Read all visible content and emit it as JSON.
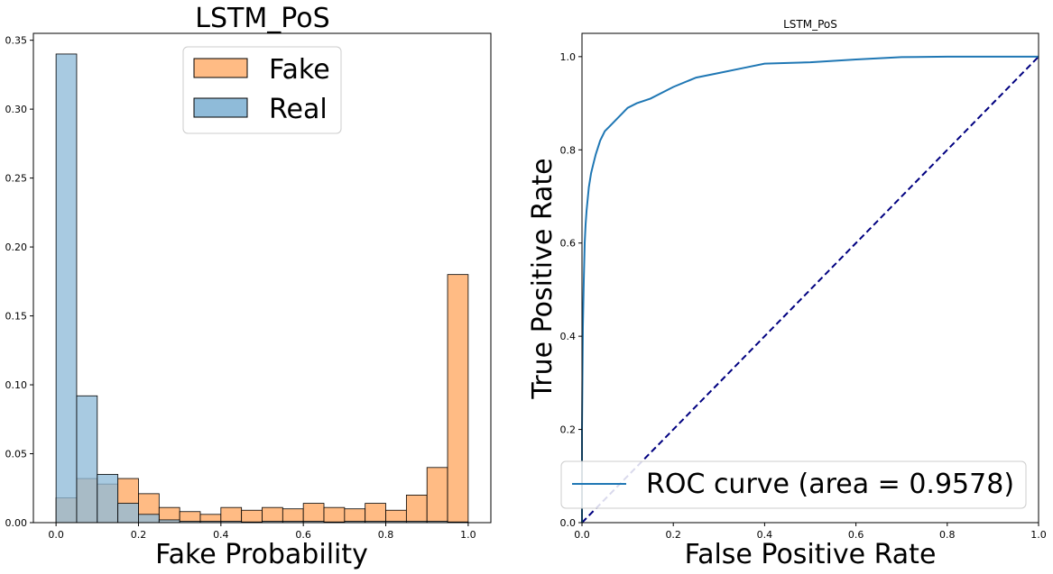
{
  "chart_data": [
    {
      "type": "histogram",
      "title": "LSTM_PoS",
      "xlabel": "Fake Probability",
      "ylabel": "",
      "xlim": [
        -0.055,
        1.055
      ],
      "ylim": [
        0,
        0.355
      ],
      "xticks": [
        "0.0",
        "0.2",
        "0.4",
        "0.6",
        "0.8",
        "1.0"
      ],
      "yticks": [
        "0.00",
        "0.05",
        "0.10",
        "0.15",
        "0.20",
        "0.25",
        "0.30",
        "0.35"
      ],
      "bins": [
        0.0,
        0.05,
        0.1,
        0.15,
        0.2,
        0.25,
        0.3,
        0.35,
        0.4,
        0.45,
        0.5,
        0.55,
        0.6,
        0.65,
        0.7,
        0.75,
        0.8,
        0.85,
        0.9,
        0.95,
        1.0
      ],
      "legend_position": "upper center",
      "series": [
        {
          "name": "Fake",
          "color": "#ffbb84",
          "values": [
            0.018,
            0.032,
            0.028,
            0.032,
            0.021,
            0.011,
            0.008,
            0.006,
            0.011,
            0.009,
            0.011,
            0.01,
            0.014,
            0.011,
            0.01,
            0.014,
            0.009,
            0.02,
            0.04,
            0.18
          ]
        },
        {
          "name": "Real",
          "color": "#8fbbd9",
          "values": [
            0.34,
            0.092,
            0.035,
            0.014,
            0.006,
            0.002,
            0.001,
            0.001,
            0.001,
            0.0005,
            0.001,
            0.001,
            0.001,
            0.0005,
            0.001,
            0.001,
            0.001,
            0.001,
            0.001,
            0.0005
          ]
        }
      ]
    },
    {
      "type": "line",
      "title": "LSTM_PoS",
      "xlabel": "False Positive Rate",
      "ylabel": "True Positive Rate",
      "xlim": [
        0,
        1
      ],
      "ylim": [
        0,
        1.05
      ],
      "xticks": [
        "0.0",
        "0.2",
        "0.4",
        "0.6",
        "0.8",
        "1.0"
      ],
      "yticks": [
        "0.0",
        "0.2",
        "0.4",
        "0.6",
        "0.8",
        "1.0"
      ],
      "legend_position": "lower right",
      "series": [
        {
          "name": "ROC curve (area = 0.9578)",
          "color": "#1f77b4",
          "style": "solid",
          "x": [
            0,
            0,
            0.002,
            0.004,
            0.006,
            0.008,
            0.01,
            0.015,
            0.02,
            0.025,
            0.03,
            0.04,
            0.05,
            0.06,
            0.08,
            0.1,
            0.12,
            0.15,
            0.2,
            0.25,
            0.3,
            0.35,
            0.4,
            0.5,
            0.6,
            0.7,
            0.8,
            0.9,
            1.0
          ],
          "y": [
            0,
            0.2,
            0.42,
            0.52,
            0.6,
            0.64,
            0.67,
            0.72,
            0.75,
            0.77,
            0.79,
            0.82,
            0.84,
            0.85,
            0.87,
            0.89,
            0.9,
            0.91,
            0.935,
            0.955,
            0.965,
            0.975,
            0.985,
            0.988,
            0.994,
            0.999,
            1.0,
            1.0,
            1.0
          ]
        },
        {
          "name": "",
          "color": "#000080",
          "style": "dashed",
          "x": [
            0,
            1
          ],
          "y": [
            0,
            1
          ]
        }
      ]
    }
  ]
}
